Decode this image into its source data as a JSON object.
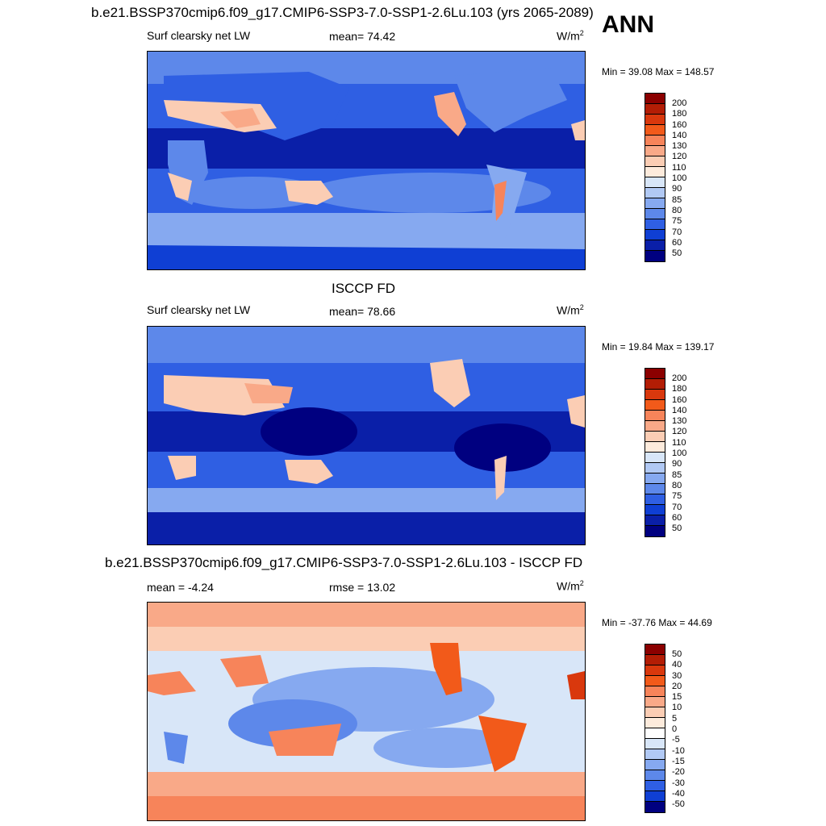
{
  "header": {
    "case_title": "b.e21.BSSP370cmip6.f09_g17.CMIP6-SSP3-7.0-SSP1-2.6Lu.103 (yrs 2065-2089)",
    "season": "ANN"
  },
  "panels": [
    {
      "title": "",
      "left_label": "Surf clearsky net LW",
      "center_label": "mean=  74.42",
      "unit": "W/m",
      "unit_sup": "2",
      "minmax": "Min =  39.08 Max = 148.57",
      "colorbar_labels": [
        "200",
        "180",
        "160",
        "140",
        "130",
        "120",
        "110",
        "100",
        "90",
        "85",
        "80",
        "75",
        "70",
        "60",
        "50"
      ]
    },
    {
      "title": "ISCCP FD",
      "left_label": "Surf clearsky net LW",
      "center_label": "mean=  78.66",
      "unit": "W/m",
      "unit_sup": "2",
      "minmax": "Min =  19.84 Max = 139.17",
      "colorbar_labels": [
        "200",
        "180",
        "160",
        "140",
        "130",
        "120",
        "110",
        "100",
        "90",
        "85",
        "80",
        "75",
        "70",
        "60",
        "50"
      ]
    },
    {
      "title": "b.e21.BSSP370cmip6.f09_g17.CMIP6-SSP3-7.0-SSP1-2.6Lu.103 - ISCCP FD",
      "left_label": "mean =  -4.24",
      "center_label": "rmse =  13.02",
      "unit": "W/m",
      "unit_sup": "2",
      "minmax": "Min = -37.76 Max =  44.69",
      "colorbar_labels": [
        "50",
        "40",
        "30",
        "20",
        "15",
        "10",
        "5",
        "0",
        "-5",
        "-10",
        "-15",
        "-20",
        "-30",
        "-40",
        "-50"
      ]
    }
  ],
  "colors": {
    "abs_scale": [
      "#8b0000",
      "#b31d05",
      "#d9380d",
      "#f25a1a",
      "#f7845a",
      "#f9a988",
      "#fbcdb4",
      "#fdebdc",
      "#d8e6f8",
      "#b1c9f4",
      "#86a9f0",
      "#5d88ea",
      "#2f5fe3",
      "#0f3fd4",
      "#0a1fa8",
      "#000080"
    ],
    "diff_scale": [
      "#8b0000",
      "#b31d05",
      "#d9380d",
      "#f25a1a",
      "#f7845a",
      "#f9a988",
      "#fbcdb4",
      "#fdebdc",
      "#ffffff",
      "#d8e6f8",
      "#b1c9f4",
      "#86a9f0",
      "#5d88ea",
      "#2f5fe3",
      "#0f3fd4",
      "#000080"
    ]
  }
}
